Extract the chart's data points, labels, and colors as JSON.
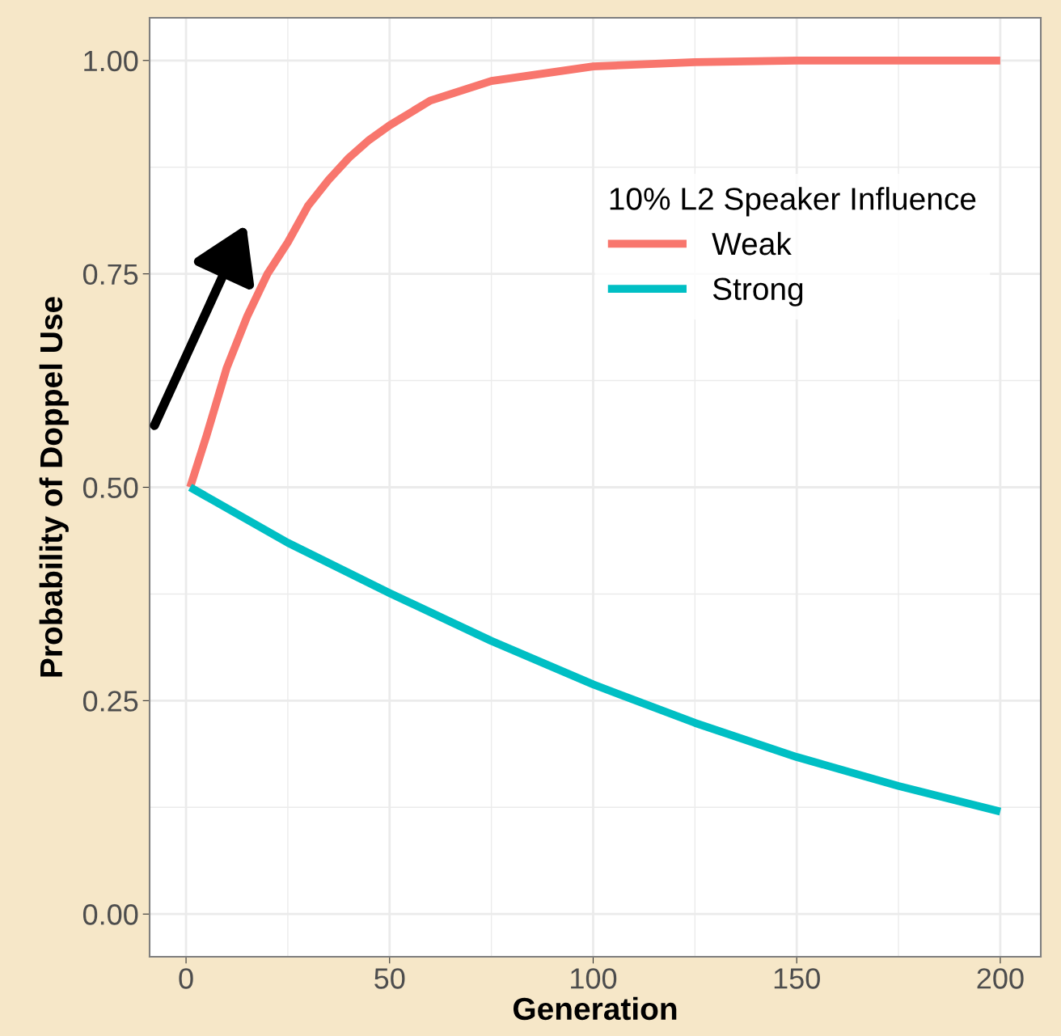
{
  "chart_data": {
    "type": "line",
    "xlabel": "Generation",
    "ylabel": "Probability of Doppel Use",
    "legend_title": "10% L2 Speaker Influence",
    "xlim": [
      -8.95,
      209.95
    ],
    "ylim": [
      -0.05,
      1.05
    ],
    "xticks": [
      0,
      50,
      100,
      150,
      200
    ],
    "yticks": [
      {
        "value": 0,
        "label": "0.00"
      },
      {
        "value": 0.25,
        "label": "0.25"
      },
      {
        "value": 0.5,
        "label": "0.50"
      },
      {
        "value": 0.75,
        "label": "0.75"
      },
      {
        "value": 1,
        "label": "1.00"
      }
    ],
    "grid": true,
    "legend": "top right",
    "line_style": "solid",
    "marker": "none",
    "series": [
      {
        "name": "Weak",
        "color": "#f8766d",
        "x": [
          1,
          5,
          10,
          15,
          20,
          25,
          30,
          35,
          40,
          45,
          50,
          60,
          75,
          100,
          125,
          150,
          200
        ],
        "values": [
          0.5,
          0.56,
          0.64,
          0.7,
          0.75,
          0.787,
          0.83,
          0.86,
          0.886,
          0.907,
          0.924,
          0.953,
          0.976,
          0.993,
          0.998,
          1.0,
          1.0
        ]
      },
      {
        "name": "Strong",
        "color": "#00bfc4",
        "x": [
          1,
          25,
          50,
          75,
          100,
          125,
          150,
          175,
          200
        ],
        "values": [
          0.5,
          0.435,
          0.376,
          0.32,
          0.269,
          0.224,
          0.184,
          0.15,
          0.12
        ]
      }
    ]
  }
}
